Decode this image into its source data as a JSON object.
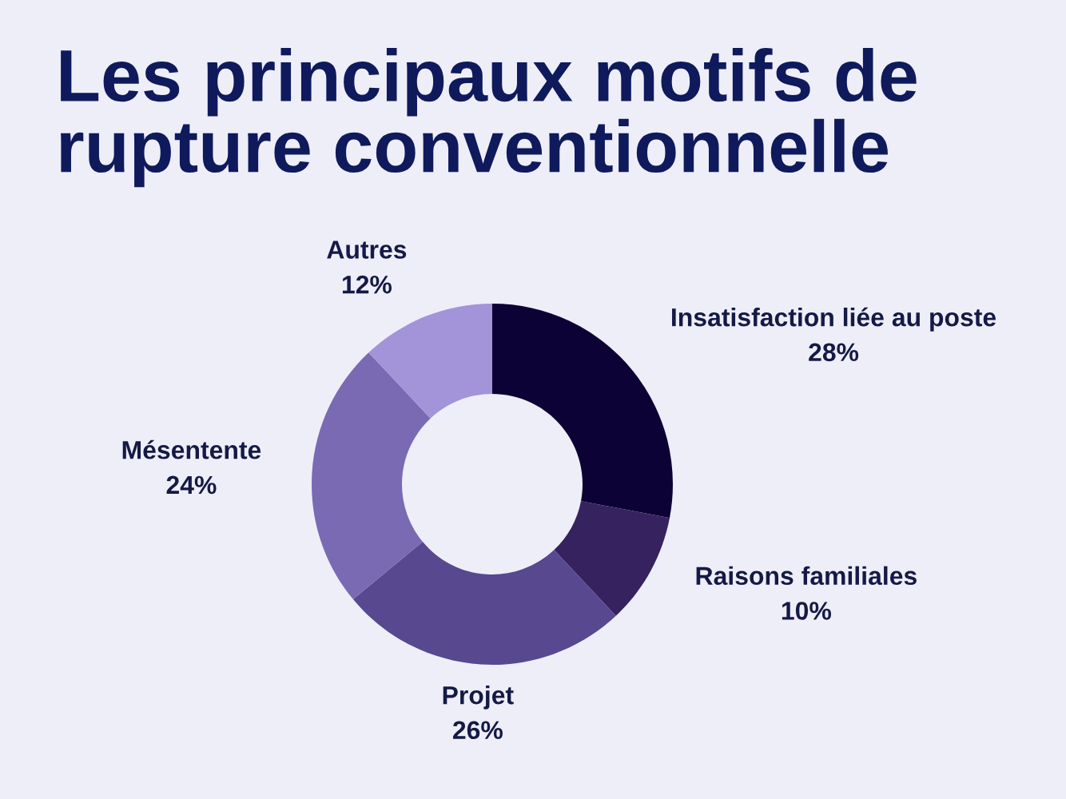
{
  "chart_data": {
    "type": "donut",
    "title": "Les principaux motifs de\nrupture conventionnelle",
    "categories": [
      "Insatisfaction liée au poste",
      "Raisons familiales",
      "Projet",
      "Mésentente",
      "Autres"
    ],
    "values": [
      28,
      10,
      26,
      24,
      12
    ],
    "value_labels": [
      "28%",
      "10%",
      "26%",
      "24%",
      "12%"
    ],
    "colors": [
      "#0d0235",
      "#35225f",
      "#574890",
      "#7a6ab3",
      "#a394d9"
    ],
    "legend": false
  }
}
